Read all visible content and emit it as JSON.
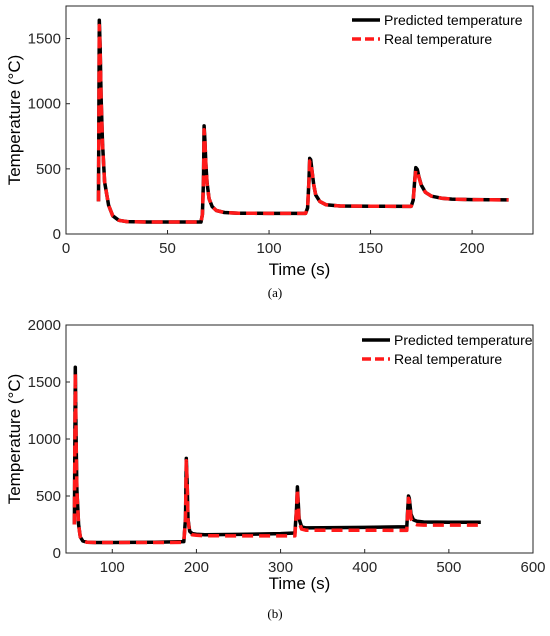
{
  "chart_data": [
    {
      "type": "line",
      "panel_label": "(a)",
      "xlabel": "Time (s)",
      "ylabel": "Temperature (°C)",
      "xlim": [
        0,
        230
      ],
      "ylim": [
        0,
        1750
      ],
      "xticks": [
        0,
        50,
        100,
        150,
        200
      ],
      "yticks": [
        0,
        500,
        1000,
        1500
      ],
      "legend_position": "top-right",
      "grid": false,
      "series": [
        {
          "name": "Predicted temperature",
          "color": "#000000",
          "style": "solid",
          "x": [
            16,
            16.4,
            16.8,
            17.3,
            18,
            19,
            21,
            23,
            26,
            30,
            40,
            55,
            66.5,
            67.2,
            67.7,
            68,
            68.4,
            68.9,
            69.5,
            70.5,
            72,
            74,
            78,
            85,
            100,
            118,
            119,
            119.7,
            120,
            120.5,
            121.2,
            122,
            123,
            125,
            128,
            135,
            150,
            170,
            171,
            171.8,
            172.3,
            173,
            173.8,
            175,
            177,
            180,
            185,
            190,
            200,
            218
          ],
          "y": [
            250,
            1640,
            1450,
            1050,
            700,
            400,
            220,
            140,
            105,
            95,
            92,
            92,
            92,
            150,
            420,
            830,
            720,
            530,
            390,
            270,
            210,
            180,
            165,
            160,
            158,
            158,
            200,
            420,
            580,
            570,
            480,
            380,
            300,
            250,
            225,
            215,
            213,
            212,
            260,
            420,
            510,
            495,
            440,
            375,
            320,
            290,
            275,
            268,
            264,
            262
          ]
        },
        {
          "name": "Real temperature",
          "color": "#ff1a1a",
          "style": "dashed",
          "x": [
            16,
            16.4,
            16.8,
            17.3,
            18,
            19,
            21,
            23,
            26,
            30,
            40,
            55,
            66.5,
            67.2,
            67.7,
            68,
            68.4,
            68.9,
            69.5,
            70.5,
            72,
            74,
            78,
            85,
            100,
            118,
            119,
            119.7,
            120,
            120.5,
            121.2,
            122,
            123,
            125,
            128,
            135,
            150,
            170,
            171,
            171.8,
            172.3,
            173,
            173.8,
            175,
            177,
            180,
            185,
            190,
            200,
            218
          ],
          "y": [
            250,
            1600,
            1430,
            1040,
            690,
            400,
            220,
            140,
            105,
            95,
            92,
            92,
            92,
            150,
            410,
            800,
            710,
            525,
            385,
            270,
            210,
            180,
            165,
            160,
            158,
            158,
            200,
            410,
            560,
            555,
            475,
            380,
            300,
            250,
            225,
            215,
            213,
            212,
            260,
            410,
            490,
            485,
            435,
            372,
            320,
            290,
            275,
            268,
            264,
            262
          ]
        }
      ]
    },
    {
      "type": "line",
      "panel_label": "(b)",
      "xlabel": "Time (s)",
      "ylabel": "Temperature (°C)",
      "xlim": [
        45,
        600
      ],
      "ylim": [
        0,
        2000
      ],
      "xticks": [
        100,
        200,
        300,
        400,
        500,
        600
      ],
      "yticks": [
        0,
        500,
        1000,
        1500,
        2000
      ],
      "legend_position": "top-right",
      "grid": false,
      "series": [
        {
          "name": "Predicted temperature",
          "color": "#000000",
          "style": "solid",
          "x": [
            55,
            56,
            57,
            58,
            60,
            62,
            65,
            70,
            80,
            100,
            150,
            185,
            187,
            188,
            189,
            190,
            192,
            195,
            200,
            210,
            250,
            300,
            317,
            319,
            320,
            321,
            322,
            325,
            330,
            350,
            400,
            450,
            451,
            452,
            453,
            455,
            458,
            462,
            470,
            500,
            538
          ],
          "y": [
            250,
            1630,
            1000,
            550,
            250,
            140,
            105,
            95,
            92,
            92,
            95,
            100,
            300,
            830,
            600,
            300,
            190,
            170,
            165,
            160,
            163,
            170,
            175,
            400,
            580,
            450,
            300,
            230,
            220,
            222,
            225,
            230,
            360,
            500,
            480,
            340,
            290,
            278,
            272,
            270,
            270
          ]
        },
        {
          "name": "Real temperature",
          "color": "#ff1a1a",
          "style": "dashed",
          "x": [
            55,
            56,
            57,
            58,
            60,
            62,
            65,
            70,
            80,
            100,
            150,
            185,
            187,
            188,
            189,
            190,
            192,
            195,
            200,
            210,
            250,
            300,
            317,
            319,
            320,
            321,
            322,
            325,
            330,
            350,
            400,
            450,
            451,
            452,
            453,
            455,
            458,
            462,
            470,
            500,
            538
          ],
          "y": [
            250,
            1580,
            980,
            540,
            245,
            140,
            105,
            95,
            92,
            92,
            92,
            93,
            290,
            810,
            590,
            290,
            175,
            160,
            155,
            152,
            150,
            150,
            150,
            390,
            560,
            420,
            270,
            210,
            200,
            200,
            200,
            198,
            340,
            480,
            460,
            300,
            260,
            248,
            245,
            245,
            245
          ]
        }
      ]
    }
  ]
}
